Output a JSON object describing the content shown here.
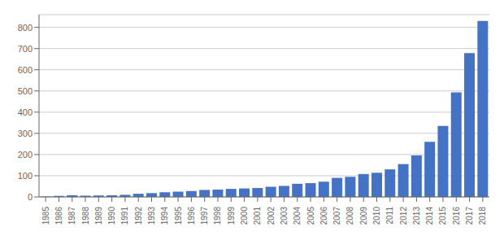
{
  "chart_data": {
    "type": "bar",
    "categories": [
      "1985",
      "1986",
      "1987",
      "1988",
      "1989",
      "1990",
      "1991",
      "1992",
      "1993",
      "1994",
      "1995",
      "1996",
      "1997",
      "1998",
      "1999",
      "2000",
      "2001",
      "2002",
      "2003",
      "2004",
      "2005",
      "2006",
      "2007",
      "2008",
      "2009",
      "2010",
      "2011",
      "2012",
      "2013",
      "2014",
      "2015",
      "2016",
      "2017",
      "2018"
    ],
    "values": [
      2,
      5,
      8,
      6,
      7,
      8,
      10,
      15,
      18,
      22,
      25,
      28,
      33,
      35,
      38,
      40,
      42,
      48,
      52,
      62,
      65,
      72,
      90,
      95,
      108,
      114,
      130,
      155,
      196,
      260,
      335,
      493,
      679,
      830
    ],
    "color": "#4472c4",
    "ylim": [
      0,
      860
    ],
    "yticks": [
      0,
      100,
      200,
      300,
      400,
      500,
      600,
      700,
      800
    ],
    "grid": true
  }
}
